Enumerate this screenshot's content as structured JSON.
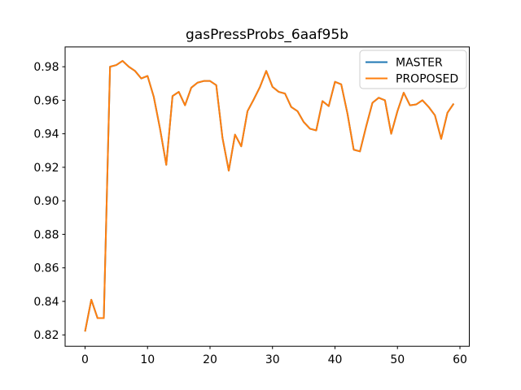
{
  "window": {
    "background": "#ffffff"
  },
  "chart_data": {
    "type": "line",
    "title": "gasPressProbs_6aaf95b",
    "xlabel": "",
    "ylabel": "",
    "x": [
      0,
      1,
      2,
      3,
      4,
      5,
      6,
      7,
      8,
      9,
      10,
      11,
      12,
      13,
      14,
      15,
      16,
      17,
      18,
      19,
      20,
      21,
      22,
      23,
      24,
      25,
      26,
      27,
      28,
      29,
      30,
      31,
      32,
      33,
      34,
      35,
      36,
      37,
      38,
      39,
      40,
      41,
      42,
      43,
      44,
      45,
      46,
      47,
      48,
      49,
      50,
      51,
      52,
      53,
      54,
      55,
      56,
      57,
      58,
      59
    ],
    "series": [
      {
        "name": "MASTER",
        "color": "#1f77b4",
        "values": [
          0.822,
          0.841,
          0.83,
          0.83,
          0.98,
          0.981,
          0.9835,
          0.98,
          0.9775,
          0.973,
          0.9745,
          0.962,
          0.943,
          0.9215,
          0.9625,
          0.965,
          0.957,
          0.9675,
          0.9705,
          0.9715,
          0.9715,
          0.969,
          0.9375,
          0.918,
          0.9395,
          0.9325,
          0.9535,
          0.9605,
          0.968,
          0.9775,
          0.968,
          0.965,
          0.964,
          0.956,
          0.9535,
          0.947,
          0.943,
          0.942,
          0.9595,
          0.9565,
          0.971,
          0.9695,
          0.952,
          0.9305,
          0.9295,
          0.9445,
          0.9585,
          0.9615,
          0.96,
          0.94,
          0.9535,
          0.9645,
          0.957,
          0.9575,
          0.96,
          0.956,
          0.951,
          0.937,
          0.9525,
          0.958
        ]
      },
      {
        "name": "PROPOSED",
        "color": "#ff7f0e",
        "values": [
          0.822,
          0.841,
          0.83,
          0.83,
          0.98,
          0.981,
          0.9835,
          0.98,
          0.9775,
          0.973,
          0.9745,
          0.962,
          0.943,
          0.9215,
          0.9625,
          0.965,
          0.957,
          0.9675,
          0.9705,
          0.9715,
          0.9715,
          0.969,
          0.9375,
          0.918,
          0.9395,
          0.9325,
          0.9535,
          0.9605,
          0.968,
          0.9775,
          0.968,
          0.965,
          0.964,
          0.956,
          0.9535,
          0.947,
          0.943,
          0.942,
          0.9595,
          0.9565,
          0.971,
          0.9695,
          0.952,
          0.9305,
          0.9295,
          0.9445,
          0.9585,
          0.9615,
          0.96,
          0.94,
          0.9535,
          0.9645,
          0.957,
          0.9575,
          0.96,
          0.956,
          0.951,
          0.937,
          0.9525,
          0.958
        ]
      }
    ],
    "legend": {
      "position": "upper-right",
      "entries": [
        "MASTER",
        "PROPOSED"
      ]
    },
    "xticks": [
      0,
      10,
      20,
      30,
      40,
      50,
      60
    ],
    "yticks": [
      0.82,
      0.84,
      0.86,
      0.88,
      0.9,
      0.92,
      0.94,
      0.96,
      0.98
    ],
    "xlim": [
      -3.19,
      61.5
    ],
    "ylim": [
      0.8132,
      0.9918
    ],
    "grid": false,
    "line_width": 2,
    "spine_color": "#000000",
    "legend_border_color": "#cccccc",
    "legend_background": "#ffffff"
  }
}
